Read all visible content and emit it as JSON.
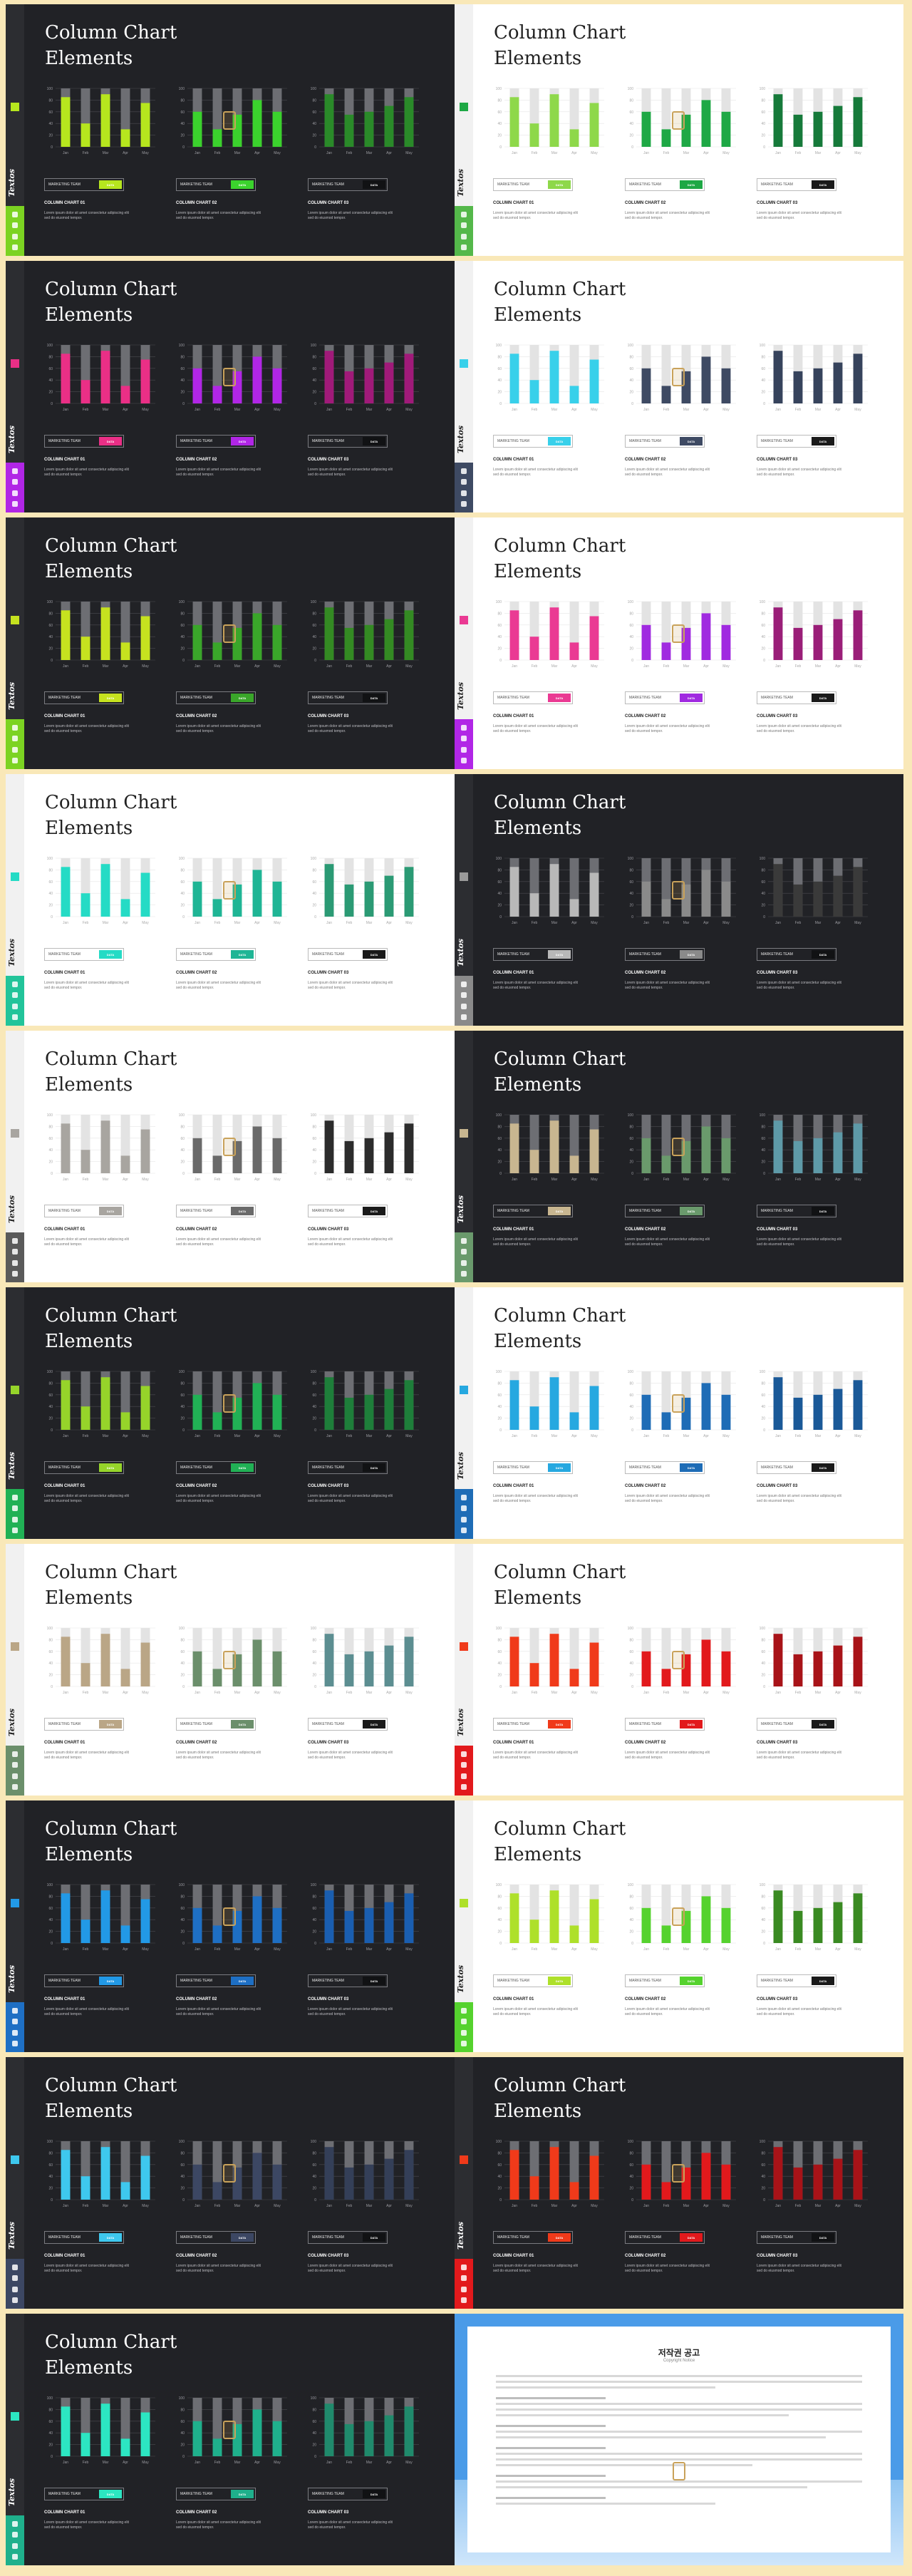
{
  "common": {
    "title_line1": "Column Chart",
    "title_line2": "Elements",
    "brand": "Textos",
    "panel_labels": [
      "MARKETING TEAM",
      "MARKETING TEAM",
      "MARKETING TEAM"
    ],
    "panel_heads": [
      "COLUMN CHART 01",
      "COLUMN CHART 02",
      "COLUMN CHART 03"
    ],
    "panel_desc": "Lorem ipsum dolor sit amet consectetur adipiscing elit sed do eiusmod tempor.",
    "chip_text": "DATA",
    "categories": [
      "Jan",
      "Feb",
      "Mar",
      "Apr",
      "May"
    ]
  },
  "chart_data": [
    {
      "type": "bar",
      "categories": [
        "Jan",
        "Feb",
        "Mar",
        "Apr",
        "May"
      ],
      "series": [
        {
          "values": [
            85,
            40,
            90,
            30,
            75
          ]
        }
      ],
      "ylim": [
        0,
        100
      ]
    },
    {
      "type": "bar",
      "categories": [
        "Jan",
        "Feb",
        "Mar",
        "Apr",
        "May"
      ],
      "series": [
        {
          "values": [
            60,
            30,
            55,
            80,
            60
          ]
        }
      ],
      "ylim": [
        0,
        100
      ]
    },
    {
      "type": "bar",
      "categories": [
        "Jan",
        "Feb",
        "Mar",
        "Apr",
        "May"
      ],
      "series": [
        {
          "values": [
            90,
            55,
            60,
            70,
            85
          ]
        }
      ],
      "ylim": [
        0,
        100
      ]
    }
  ],
  "slides": [
    {
      "theme": "dark",
      "colors": [
        "#b6e61e",
        "#3bd22d",
        "#2a8a29"
      ],
      "chip": "#b6e61e",
      "side": "#7cd322"
    },
    {
      "theme": "light",
      "colors": [
        "#8ed84a",
        "#1ea845",
        "#167a3a"
      ],
      "chip": "#1ea845",
      "side": "#54b84a"
    },
    {
      "theme": "dark",
      "colors": [
        "#ea2f86",
        "#b126e6",
        "#a01a79"
      ],
      "chip": "#ea2f86",
      "side": "#b126e6"
    },
    {
      "theme": "light",
      "colors": [
        "#38d0ea",
        "#3e4a63",
        "#36435c"
      ],
      "chip": "#38d0ea",
      "side": "#3e4a63"
    },
    {
      "theme": "dark",
      "colors": [
        "#c6e21f",
        "#3aa62a",
        "#348a23"
      ],
      "chip": "#c6e21f",
      "side": "#7cd322"
    },
    {
      "theme": "light",
      "colors": [
        "#ea3a93",
        "#a02ae0",
        "#9a1e78"
      ],
      "chip": "#ea3a93",
      "side": "#b126e6"
    },
    {
      "theme": "light",
      "colors": [
        "#25dbc5",
        "#1fb595",
        "#2b9a74"
      ],
      "chip": "#25dbc5",
      "side": "#22c49a"
    },
    {
      "theme": "dark",
      "colors": [
        "#b8b8b8",
        "#8a8a8a",
        "#3a3a3a"
      ],
      "chip": "#9a9a9a",
      "side": "#8a8a8a"
    },
    {
      "theme": "light",
      "colors": [
        "#a8a5a0",
        "#6a6a6a",
        "#2c2c2c"
      ],
      "chip": "#a8a5a0",
      "side": "#5a5a5a"
    },
    {
      "theme": "dark",
      "colors": [
        "#c8b690",
        "#6a9a6c",
        "#5e9aa8"
      ],
      "chip": "#c8b690",
      "side": "#6a9a6c"
    },
    {
      "theme": "dark",
      "colors": [
        "#96d42a",
        "#21b155",
        "#1e7e3a"
      ],
      "chip": "#96d42a",
      "side": "#21b155"
    },
    {
      "theme": "light",
      "colors": [
        "#26a8e0",
        "#1e6cb6",
        "#1a5998"
      ],
      "chip": "#26a8e0",
      "side": "#1e6cb6"
    },
    {
      "theme": "light",
      "colors": [
        "#baa686",
        "#6b8f6b",
        "#5c8e91"
      ],
      "chip": "#baa686",
      "side": "#6b8f6b"
    },
    {
      "theme": "light",
      "colors": [
        "#f03a1a",
        "#e2191c",
        "#a81318"
      ],
      "chip": "#f03a1a",
      "side": "#e2191c"
    },
    {
      "theme": "dark",
      "colors": [
        "#2299e6",
        "#1e6fc4",
        "#1a5eb0"
      ],
      "chip": "#2299e6",
      "side": "#1e6fc4"
    },
    {
      "theme": "light",
      "colors": [
        "#aee02a",
        "#55d22e",
        "#3a8a22"
      ],
      "chip": "#aee02a",
      "side": "#55d22e"
    },
    {
      "theme": "dark",
      "colors": [
        "#3ec8ee",
        "#3c4763",
        "#343f58"
      ],
      "chip": "#3ec8ee",
      "side": "#3c4763"
    },
    {
      "theme": "dark",
      "colors": [
        "#f03a1a",
        "#e2191c",
        "#a81318"
      ],
      "chip": "#f03a1a",
      "side": "#e2191c"
    },
    {
      "theme": "dark",
      "colors": [
        "#2ce6c2",
        "#1fb08c",
        "#208a6c"
      ],
      "chip": "#2ce6c2",
      "side": "#1fb08c"
    }
  ],
  "notice": {
    "title": "저작권 공고",
    "subtitle": "Copyright Notice"
  }
}
